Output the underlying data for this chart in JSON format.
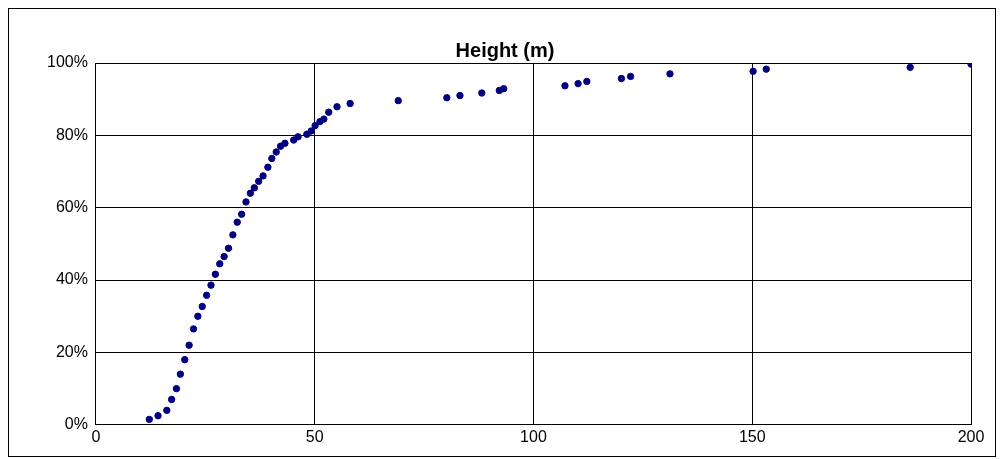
{
  "chart_data": {
    "type": "scatter",
    "title": "Height (m)",
    "x": [
      12.2,
      14.2,
      16.2,
      17.3,
      18.4,
      19.3,
      20.3,
      21.3,
      22.3,
      23.3,
      24.3,
      25.3,
      26.3,
      27.3,
      28.3,
      29.3,
      30.3,
      31.3,
      32.3,
      33.3,
      34.3,
      35.3,
      36.2,
      37.2,
      38.2,
      39.3,
      40.2,
      41.2,
      42.2,
      43.2,
      45.2,
      46.2,
      48.2,
      49.2,
      50.1,
      51.2,
      52.1,
      53.2,
      55.1,
      58.1,
      69.1,
      80.2,
      83.2,
      88.2,
      92.2,
      93.2,
      107.2,
      110.2,
      112.2,
      120.1,
      122.2,
      131.2,
      150.2,
      153.2,
      186.1,
      200
    ],
    "series": [
      {
        "color": "#000080",
        "values": [
          1.5,
          2.5,
          4,
          7,
          10,
          14,
          18,
          22,
          26.5,
          30,
          32.7,
          35.8,
          38.6,
          41.6,
          44.5,
          46.5,
          48.8,
          52.5,
          56,
          58.2,
          61.6,
          64,
          65.5,
          67.3,
          68.8,
          71.2,
          73.6,
          75.4,
          77,
          77.8,
          78.7,
          79.6,
          80.3,
          81.2,
          82.7,
          83.8,
          84.5,
          86.4,
          87.9,
          88.8,
          89.6,
          90.4,
          91,
          91.7,
          92.4,
          92.9,
          93.7,
          94.3,
          94.9,
          95.7,
          96.3,
          97,
          97.7,
          98.3,
          98.8,
          99.7
        ]
      }
    ],
    "xlim": [
      0,
      200
    ],
    "xticks": [
      0,
      50,
      100,
      150,
      200
    ],
    "ylim": [
      0,
      100
    ],
    "yticks": [
      {
        "value": 0,
        "label": "0%"
      },
      {
        "value": 20,
        "label": "20%"
      },
      {
        "value": 40,
        "label": "40%"
      },
      {
        "value": 60,
        "label": "60%"
      },
      {
        "value": 80,
        "label": "80%"
      },
      {
        "value": 100,
        "label": "100%"
      }
    ],
    "grid": true,
    "marker": "circle"
  }
}
